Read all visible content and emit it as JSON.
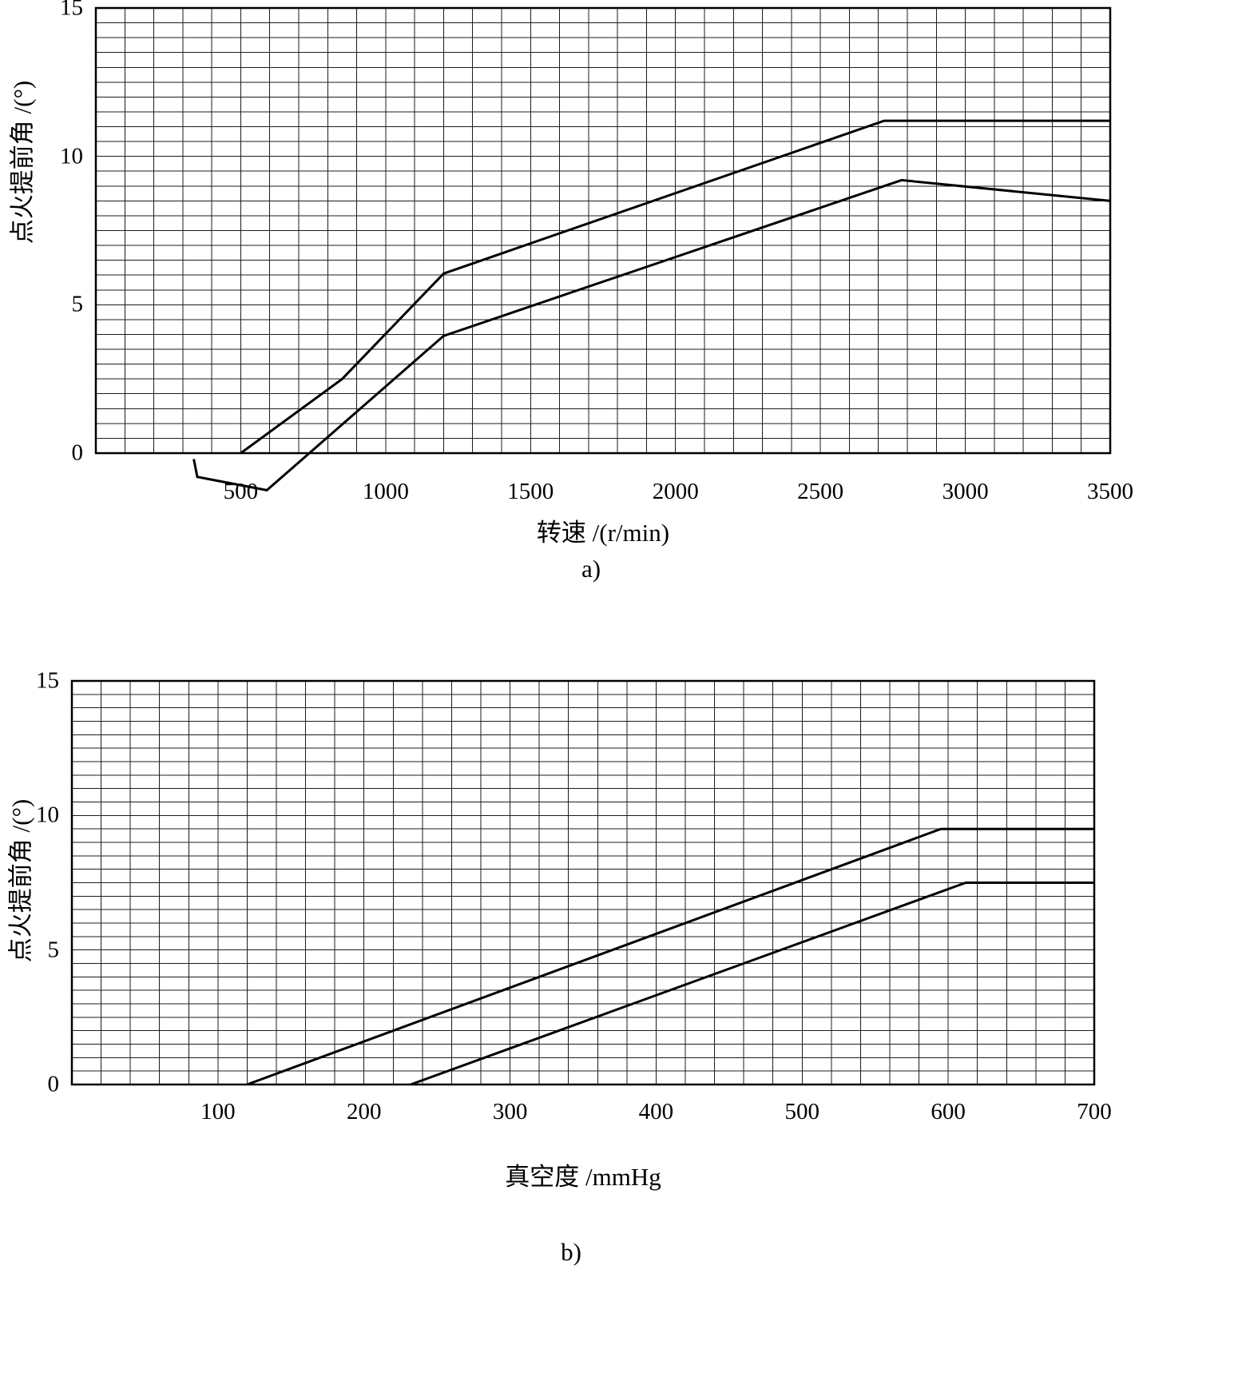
{
  "figure": {
    "background": "#ffffff",
    "line_color": "#000000",
    "grid_color": "#1c1c1c"
  },
  "chart_data": [
    {
      "id": "a",
      "type": "line",
      "title": "",
      "xlabel": "转速 /(r/min)",
      "ylabel": "点火提前角 /(°)",
      "caption": "a)",
      "xlim": [
        0,
        3500
      ],
      "ylim": [
        0,
        15
      ],
      "x_ticks": [
        500,
        1000,
        1500,
        2000,
        2500,
        3000,
        3500
      ],
      "y_ticks": [
        0,
        5,
        10,
        15
      ],
      "grid": {
        "visible": true,
        "x_step": 100,
        "y_step": 0.5
      },
      "legend": "none",
      "series": [
        {
          "name": "upper-limit-curve",
          "points": [
            [
              500,
              0
            ],
            [
              850,
              2.5
            ],
            [
              1200,
              6.05
            ],
            [
              2720,
              11.2
            ],
            [
              3500,
              11.2
            ]
          ]
        },
        {
          "name": "lower-limit-curve",
          "points": [
            [
              338,
              -0.2
            ],
            [
              350,
              -0.8
            ],
            [
              590,
              -1.25
            ],
            [
              1200,
              3.95
            ],
            [
              2780,
              9.2
            ],
            [
              3500,
              8.5
            ]
          ]
        }
      ]
    },
    {
      "id": "b",
      "type": "line",
      "title": "",
      "xlabel": "真空度 /mmHg",
      "ylabel": "点火提前角 /(°)",
      "caption": "b)",
      "xlim": [
        0,
        700
      ],
      "ylim": [
        0,
        15
      ],
      "x_ticks": [
        100,
        200,
        300,
        400,
        500,
        600,
        700
      ],
      "y_ticks": [
        0,
        5,
        10,
        15
      ],
      "grid": {
        "visible": true,
        "x_step": 20,
        "y_step": 0.5
      },
      "legend": "none",
      "series": [
        {
          "name": "upper-limit-curve",
          "points": [
            [
              120,
              0
            ],
            [
              595,
              9.5
            ],
            [
              700,
              9.5
            ]
          ]
        },
        {
          "name": "lower-limit-curve",
          "points": [
            [
              232,
              0
            ],
            [
              612,
              7.5
            ],
            [
              700,
              7.5
            ]
          ]
        }
      ]
    }
  ]
}
